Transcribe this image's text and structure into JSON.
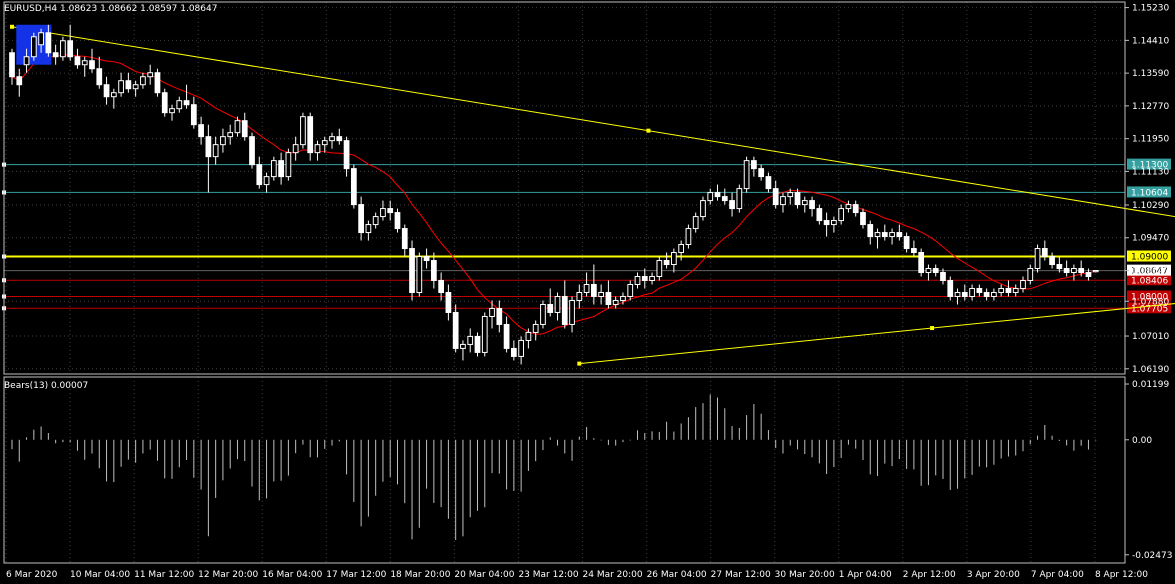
{
  "header": {
    "symbol_timeframe": "EURUSD,H4",
    "ohlc": "1.08623 1.08662 1.08597 1.08647",
    "indicator_label": "Bears(13) 0.00007"
  },
  "colors": {
    "background": "#000000",
    "grid": "#404040",
    "frame": "#c0c0c0",
    "bull_candle": "#000000",
    "bear_candle": "#ffffff",
    "ma_line": "#ff0000",
    "trendline": "#ffff00",
    "cyan_line": "#35a0a0",
    "red_line": "#c00000",
    "text": "#ffffff",
    "selection": "#1432e6"
  },
  "chart_data": [
    {
      "type": "candlestick",
      "name": "EURUSD H4",
      "yticks": [
        "1.15230",
        "1.14410",
        "1.13590",
        "1.12770",
        "1.11950",
        "1.11130",
        "1.10290",
        "1.09470",
        "1.08647",
        "1.07880",
        "1.07010",
        "1.06190"
      ],
      "ylim": [
        1.0606,
        1.1537
      ],
      "xticks": [
        "6 Mar 2020",
        "10 Mar 04:00",
        "11 Mar 12:00",
        "12 Mar 20:00",
        "16 Mar 04:00",
        "17 Mar 12:00",
        "18 Mar 20:00",
        "20 Mar 04:00",
        "23 Mar 12:00",
        "24 Mar 20:00",
        "26 Mar 04:00",
        "27 Mar 12:00",
        "30 Mar 20:00",
        "1 Apr 04:00",
        "2 Apr 12:00",
        "3 Apr 20:00",
        "7 Apr 04:00",
        "8 Apr 12:00"
      ],
      "levels": [
        {
          "price": 1.113,
          "label": "1.11300",
          "color": "#35a0a0"
        },
        {
          "price": 1.10604,
          "label": "1.10604",
          "color": "#35a0a0"
        },
        {
          "price": 1.09,
          "label": "1.09000",
          "color": "#ffff00",
          "bold": true
        },
        {
          "price": 1.08406,
          "label": "1.08406",
          "color": "#c00000"
        },
        {
          "price": 1.08,
          "label": "1.08000",
          "color": "#c00000"
        },
        {
          "price": 1.07705,
          "label": "1.07705",
          "color": "#c00000"
        }
      ],
      "current_price": {
        "price": 1.08647,
        "label": "1.08647"
      },
      "trendlines": [
        {
          "from": [
            0,
            1.1475
          ],
          "to": [
            175,
            1.0955
          ],
          "color": "#ffff00"
        },
        {
          "from": [
            78,
            1.0632
          ],
          "to": [
            175,
            1.081
          ],
          "color": "#ffff00"
        }
      ],
      "candles": [
        [
          1.141,
          1.142,
          1.133,
          1.135
        ],
        [
          1.135,
          1.137,
          1.13,
          1.133
        ],
        [
          1.138,
          1.142,
          1.136,
          1.14
        ],
        [
          1.14,
          1.146,
          1.139,
          1.145
        ],
        [
          1.143,
          1.147,
          1.141,
          1.146
        ],
        [
          1.146,
          1.148,
          1.14,
          1.141
        ],
        [
          1.141,
          1.143,
          1.138,
          1.14
        ],
        [
          1.14,
          1.145,
          1.139,
          1.144
        ],
        [
          1.144,
          1.148,
          1.139,
          1.14
        ],
        [
          1.14,
          1.142,
          1.137,
          1.138
        ],
        [
          1.138,
          1.14,
          1.135,
          1.139
        ],
        [
          1.139,
          1.142,
          1.136,
          1.137
        ],
        [
          1.137,
          1.14,
          1.132,
          1.133
        ],
        [
          1.133,
          1.135,
          1.128,
          1.13
        ],
        [
          1.13,
          1.132,
          1.127,
          1.131
        ],
        [
          1.131,
          1.136,
          1.13,
          1.134
        ],
        [
          1.134,
          1.136,
          1.131,
          1.132
        ],
        [
          1.132,
          1.134,
          1.13,
          1.133
        ],
        [
          1.133,
          1.136,
          1.132,
          1.135
        ],
        [
          1.135,
          1.138,
          1.133,
          1.136
        ],
        [
          1.136,
          1.137,
          1.13,
          1.131
        ],
        [
          1.131,
          1.132,
          1.125,
          1.126
        ],
        [
          1.126,
          1.128,
          1.124,
          1.127
        ],
        [
          1.127,
          1.13,
          1.126,
          1.129
        ],
        [
          1.129,
          1.133,
          1.127,
          1.128
        ],
        [
          1.128,
          1.13,
          1.122,
          1.123
        ],
        [
          1.123,
          1.125,
          1.118,
          1.12
        ],
        [
          1.12,
          1.123,
          1.106,
          1.115
        ],
        [
          1.115,
          1.12,
          1.113,
          1.118
        ],
        [
          1.118,
          1.122,
          1.116,
          1.12
        ],
        [
          1.12,
          1.123,
          1.118,
          1.121
        ],
        [
          1.121,
          1.125,
          1.12,
          1.124
        ],
        [
          1.124,
          1.126,
          1.119,
          1.12
        ],
        [
          1.12,
          1.121,
          1.112,
          1.113
        ],
        [
          1.113,
          1.115,
          1.107,
          1.108
        ],
        [
          1.108,
          1.111,
          1.106,
          1.11
        ],
        [
          1.11,
          1.115,
          1.109,
          1.114
        ],
        [
          1.114,
          1.116,
          1.108,
          1.11
        ],
        [
          1.11,
          1.117,
          1.109,
          1.116
        ],
        [
          1.116,
          1.12,
          1.114,
          1.118
        ],
        [
          1.118,
          1.126,
          1.117,
          1.125
        ],
        [
          1.125,
          1.126,
          1.114,
          1.116
        ],
        [
          1.116,
          1.119,
          1.114,
          1.118
        ],
        [
          1.118,
          1.12,
          1.116,
          1.119
        ],
        [
          1.119,
          1.121,
          1.117,
          1.12
        ],
        [
          1.12,
          1.122,
          1.118,
          1.119
        ],
        [
          1.119,
          1.12,
          1.11,
          1.112
        ],
        [
          1.112,
          1.113,
          1.102,
          1.103
        ],
        [
          1.103,
          1.105,
          1.094,
          1.096
        ],
        [
          1.096,
          1.099,
          1.094,
          1.098
        ],
        [
          1.098,
          1.101,
          1.097,
          1.1
        ],
        [
          1.1,
          1.104,
          1.099,
          1.102
        ],
        [
          1.102,
          1.104,
          1.099,
          1.101
        ],
        [
          1.101,
          1.102,
          1.096,
          1.097
        ],
        [
          1.097,
          1.098,
          1.09,
          1.092
        ],
        [
          1.092,
          1.094,
          1.079,
          1.081
        ],
        [
          1.081,
          1.091,
          1.08,
          1.09
        ],
        [
          1.09,
          1.092,
          1.087,
          1.089
        ],
        [
          1.089,
          1.091,
          1.082,
          1.084
        ],
        [
          1.084,
          1.086,
          1.079,
          1.081
        ],
        [
          1.081,
          1.083,
          1.074,
          1.076
        ],
        [
          1.076,
          1.078,
          1.066,
          1.067
        ],
        [
          1.067,
          1.069,
          1.064,
          1.068
        ],
        [
          1.068,
          1.072,
          1.066,
          1.07
        ],
        [
          1.07,
          1.071,
          1.065,
          1.066
        ],
        [
          1.066,
          1.076,
          1.065,
          1.075
        ],
        [
          1.075,
          1.079,
          1.072,
          1.077
        ],
        [
          1.077,
          1.079,
          1.071,
          1.073
        ],
        [
          1.073,
          1.075,
          1.066,
          1.067
        ],
        [
          1.067,
          1.069,
          1.064,
          1.065
        ],
        [
          1.065,
          1.07,
          1.063,
          1.069
        ],
        [
          1.069,
          1.072,
          1.067,
          1.071
        ],
        [
          1.071,
          1.074,
          1.069,
          1.073
        ],
        [
          1.073,
          1.079,
          1.072,
          1.078
        ],
        [
          1.078,
          1.082,
          1.075,
          1.076
        ],
        [
          1.076,
          1.081,
          1.074,
          1.08
        ],
        [
          1.08,
          1.084,
          1.072,
          1.073
        ],
        [
          1.073,
          1.08,
          1.071,
          1.079
        ],
        [
          1.079,
          1.083,
          1.077,
          1.081
        ],
        [
          1.081,
          1.086,
          1.08,
          1.083
        ],
        [
          1.083,
          1.088,
          1.078,
          1.08
        ],
        [
          1.08,
          1.083,
          1.078,
          1.081
        ],
        [
          1.081,
          1.084,
          1.077,
          1.078
        ],
        [
          1.078,
          1.08,
          1.077,
          1.079
        ],
        [
          1.079,
          1.081,
          1.078,
          1.08
        ],
        [
          1.08,
          1.084,
          1.079,
          1.083
        ],
        [
          1.083,
          1.086,
          1.082,
          1.085
        ],
        [
          1.085,
          1.087,
          1.082,
          1.084
        ],
        [
          1.084,
          1.086,
          1.083,
          1.085
        ],
        [
          1.085,
          1.09,
          1.084,
          1.089
        ],
        [
          1.089,
          1.091,
          1.087,
          1.088
        ],
        [
          1.088,
          1.092,
          1.086,
          1.091
        ],
        [
          1.091,
          1.094,
          1.089,
          1.093
        ],
        [
          1.093,
          1.098,
          1.092,
          1.097
        ],
        [
          1.097,
          1.101,
          1.096,
          1.1
        ],
        [
          1.1,
          1.105,
          1.099,
          1.104
        ],
        [
          1.104,
          1.107,
          1.103,
          1.106
        ],
        [
          1.106,
          1.108,
          1.104,
          1.105
        ],
        [
          1.105,
          1.107,
          1.103,
          1.104
        ],
        [
          1.104,
          1.106,
          1.1,
          1.102
        ],
        [
          1.102,
          1.108,
          1.101,
          1.107
        ],
        [
          1.107,
          1.115,
          1.106,
          1.114
        ],
        [
          1.114,
          1.115,
          1.11,
          1.112
        ],
        [
          1.112,
          1.113,
          1.109,
          1.11
        ],
        [
          1.11,
          1.111,
          1.106,
          1.107
        ],
        [
          1.107,
          1.109,
          1.102,
          1.103
        ],
        [
          1.103,
          1.106,
          1.101,
          1.105
        ],
        [
          1.105,
          1.107,
          1.103,
          1.106
        ],
        [
          1.106,
          1.107,
          1.102,
          1.103
        ],
        [
          1.103,
          1.105,
          1.101,
          1.104
        ],
        [
          1.104,
          1.105,
          1.1,
          1.102
        ],
        [
          1.102,
          1.103,
          1.098,
          1.099
        ],
        [
          1.099,
          1.101,
          1.095,
          1.098
        ],
        [
          1.098,
          1.1,
          1.096,
          1.099
        ],
        [
          1.099,
          1.103,
          1.098,
          1.102
        ],
        [
          1.102,
          1.104,
          1.101,
          1.103
        ],
        [
          1.103,
          1.104,
          1.1,
          1.101
        ],
        [
          1.101,
          1.102,
          1.097,
          1.098
        ],
        [
          1.098,
          1.099,
          1.093,
          1.095
        ],
        [
          1.095,
          1.097,
          1.092,
          1.096
        ],
        [
          1.096,
          1.098,
          1.094,
          1.095
        ],
        [
          1.095,
          1.097,
          1.093,
          1.096
        ],
        [
          1.096,
          1.098,
          1.094,
          1.095
        ],
        [
          1.095,
          1.096,
          1.091,
          1.092
        ],
        [
          1.092,
          1.094,
          1.09,
          1.091
        ],
        [
          1.091,
          1.092,
          1.085,
          1.086
        ],
        [
          1.086,
          1.088,
          1.084,
          1.087
        ],
        [
          1.087,
          1.088,
          1.085,
          1.086
        ],
        [
          1.086,
          1.087,
          1.083,
          1.084
        ],
        [
          1.084,
          1.085,
          1.079,
          1.08
        ],
        [
          1.08,
          1.082,
          1.078,
          1.081
        ],
        [
          1.081,
          1.083,
          1.079,
          1.08
        ],
        [
          1.08,
          1.083,
          1.079,
          1.082
        ],
        [
          1.082,
          1.083,
          1.08,
          1.081
        ],
        [
          1.081,
          1.082,
          1.079,
          1.08
        ],
        [
          1.08,
          1.082,
          1.079,
          1.081
        ],
        [
          1.081,
          1.083,
          1.08,
          1.082
        ],
        [
          1.082,
          1.084,
          1.08,
          1.081
        ],
        [
          1.081,
          1.083,
          1.08,
          1.082
        ],
        [
          1.082,
          1.085,
          1.081,
          1.084
        ],
        [
          1.084,
          1.088,
          1.083,
          1.087
        ],
        [
          1.087,
          1.093,
          1.086,
          1.092
        ],
        [
          1.092,
          1.094,
          1.089,
          1.09
        ],
        [
          1.09,
          1.091,
          1.087,
          1.088
        ],
        [
          1.088,
          1.09,
          1.086,
          1.087
        ],
        [
          1.087,
          1.089,
          1.085,
          1.086
        ],
        [
          1.086,
          1.088,
          1.084,
          1.087
        ],
        [
          1.087,
          1.089,
          1.085,
          1.086
        ],
        [
          1.086,
          1.087,
          1.084,
          1.085
        ],
        [
          1.0862,
          1.0866,
          1.086,
          1.0865
        ]
      ]
    },
    {
      "type": "bar",
      "name": "Bears(13)",
      "yticks": [
        "0.01199",
        "0.00",
        "-0.02473"
      ],
      "ylim": [
        -0.0265,
        0.0135
      ]
    }
  ]
}
